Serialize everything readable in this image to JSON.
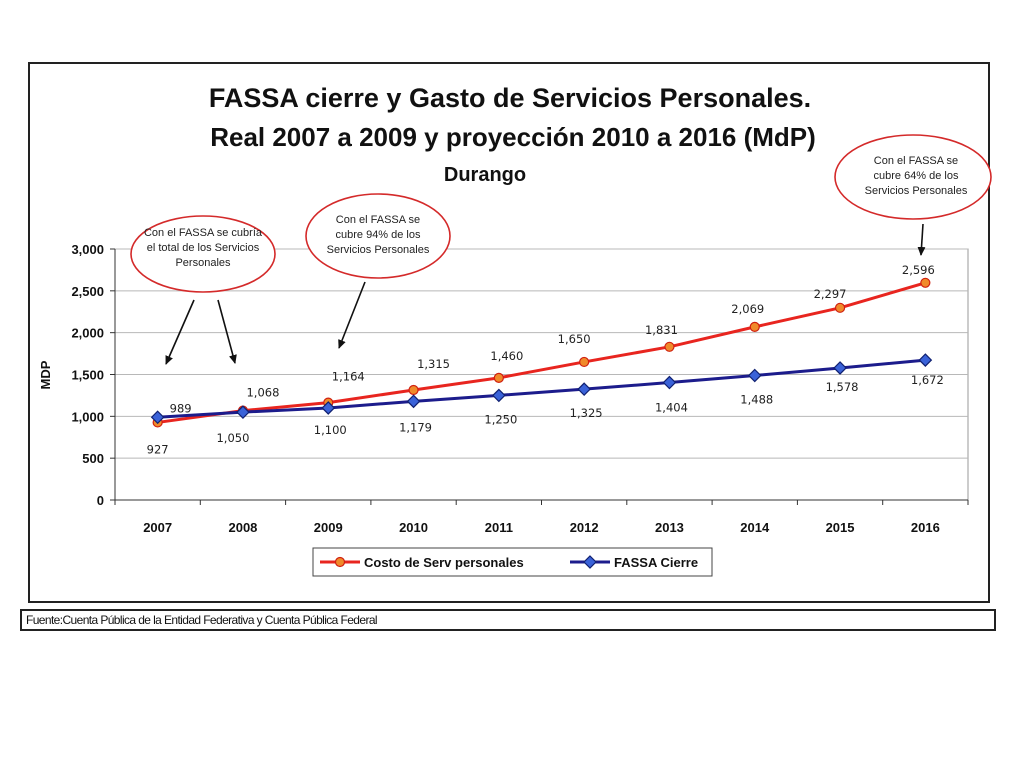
{
  "chart_data": {
    "type": "line",
    "title": "FASSA cierre y Gasto de Servicios Personales.",
    "subtitle": "Real 2007 a 2009 y proyección 2010 a 2016 (MdP)",
    "subtitle2": "Durango",
    "ylabel": "MDP",
    "xlabel": "",
    "ylim": [
      0,
      3000
    ],
    "yticks": [
      0,
      500,
      1000,
      1500,
      2000,
      2500,
      3000
    ],
    "ytick_labels": [
      "0",
      "500",
      "1,000",
      "1,500",
      "2,000",
      "2,500",
      "3,000"
    ],
    "categories": [
      "2007",
      "2008",
      "2009",
      "2010",
      "2011",
      "2012",
      "2013",
      "2014",
      "2015",
      "2016"
    ],
    "grid": true,
    "legend_position": "bottom",
    "series": [
      {
        "name": "Costo de Serv personales",
        "color": "#e8251f",
        "marker_color": "#f08a2a",
        "values": [
          927,
          1068,
          1164,
          1315,
          1460,
          1650,
          1831,
          2069,
          2297,
          2596
        ],
        "labels": [
          "927",
          "1,068",
          "1,164",
          "1,315",
          "1,460",
          "1,650",
          "1,831",
          "2,069",
          "2,297",
          "2,596"
        ]
      },
      {
        "name": "FASSA Cierre",
        "color": "#1c1c8c",
        "marker_color": "#3a62d8",
        "values": [
          989,
          1050,
          1100,
          1179,
          1250,
          1325,
          1404,
          1488,
          1578,
          1672
        ],
        "labels": [
          "989",
          "1,050",
          "1,100",
          "1,179",
          "1,250",
          "1,325",
          "1,404",
          "1,488",
          "1,578",
          "1,672"
        ]
      }
    ],
    "annotations": [
      {
        "lines": [
          "Con el FASSA se cubría",
          "el total de los Servicios",
          "Personales"
        ]
      },
      {
        "lines": [
          "Con el FASSA se",
          "cubre 94% de los",
          "Servicios Personales"
        ]
      },
      {
        "lines": [
          "Con el FASSA se",
          "cubre 64% de los",
          "Servicios Personales"
        ]
      }
    ]
  },
  "source": "Fuente:Cuenta Pública de la Entidad Federativa y  Cuenta Pública Federal"
}
